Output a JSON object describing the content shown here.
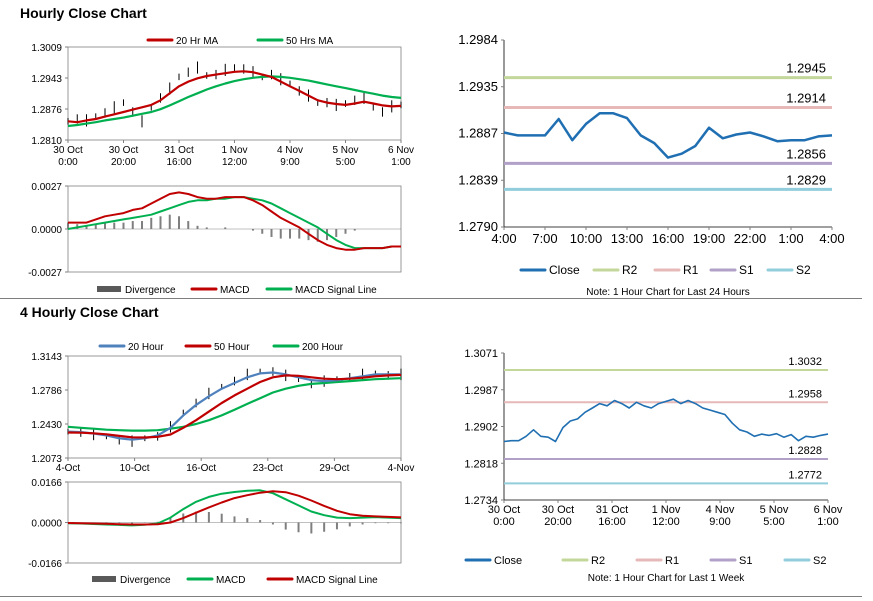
{
  "sections": {
    "hourly_title": "Hourly Close Chart",
    "four_hourly_title": "4 Hourly Close Chart"
  },
  "colors": {
    "price": "#000000",
    "ma20": "#c00000",
    "ma50": "#00b050",
    "blue": "#4f81bd",
    "close": "#1f6fb2",
    "r2": "#c4d79b",
    "r1": "#e6b9b8",
    "s1": "#b1a0c7",
    "s2": "#92cddc",
    "divergence": "#7f7f7f",
    "axis": "#808080"
  },
  "chart_data": [
    {
      "id": "hourly_price",
      "type": "line",
      "title": "Hourly Close Chart",
      "ylim": [
        1.281,
        1.3009
      ],
      "yticks": [
        "1.3009",
        "1.2943",
        "1.2876",
        "1.2810"
      ],
      "xticks": [
        [
          "30 Oct",
          "0:00"
        ],
        [
          "30 Oct",
          "20:00"
        ],
        [
          "31 Oct",
          "16:00"
        ],
        [
          "1 Nov",
          "12:00"
        ],
        [
          "4 Nov",
          "9:00"
        ],
        [
          "5 Nov",
          "5:00"
        ],
        [
          "6 Nov",
          "1:00"
        ]
      ],
      "legend": [
        "20 Hr MA",
        "50 Hrs MA"
      ],
      "series": [
        {
          "name": "Price",
          "values": [
            1.285,
            1.2855,
            1.2852,
            1.286,
            1.2868,
            1.288,
            1.289,
            1.287,
            1.285,
            1.288,
            1.29,
            1.292,
            1.2945,
            1.2955,
            1.2965,
            1.2948,
            1.295,
            1.296,
            1.2965,
            1.2962,
            1.2955,
            1.2945,
            1.295,
            1.294,
            1.293,
            1.2915,
            1.2905,
            1.289,
            1.289,
            1.2885,
            1.2888,
            1.2895,
            1.29,
            1.288,
            1.287,
            1.2882,
            1.2885
          ]
        },
        {
          "name": "20 Hr MA",
          "values": [
            1.285,
            1.2848,
            1.2852,
            1.2855,
            1.286,
            1.2865,
            1.287,
            1.2875,
            1.288,
            1.2885,
            1.2895,
            1.291,
            1.2925,
            1.2935,
            1.2942,
            1.2947,
            1.295,
            1.2953,
            1.2956,
            1.2957,
            1.2955,
            1.295,
            1.2945,
            1.2935,
            1.2925,
            1.2915,
            1.2905,
            1.2895,
            1.289,
            1.2887,
            1.2885,
            1.2888,
            1.2892,
            1.2888,
            1.2884,
            1.2882,
            1.2883
          ]
        },
        {
          "name": "50 Hrs MA",
          "values": [
            1.284,
            1.2842,
            1.2845,
            1.2848,
            1.2852,
            1.2855,
            1.2858,
            1.2862,
            1.2866,
            1.287,
            1.2876,
            1.2884,
            1.2893,
            1.2902,
            1.291,
            1.2918,
            1.2925,
            1.2931,
            1.2936,
            1.294,
            1.2943,
            1.2945,
            1.2946,
            1.2945,
            1.2943,
            1.294,
            1.2937,
            1.2933,
            1.2929,
            1.2925,
            1.2921,
            1.2917,
            1.2913,
            1.2909,
            1.2905,
            1.2902,
            1.29
          ]
        }
      ]
    },
    {
      "id": "hourly_macd",
      "type": "line",
      "ylim": [
        -0.0027,
        0.0027
      ],
      "yticks": [
        "0.0027",
        "0.0000",
        "-0.0027"
      ],
      "legend": [
        "Divergence",
        "MACD",
        "MACD Signal Line"
      ],
      "series": [
        {
          "name": "MACD",
          "values": [
            0.0004,
            0.0004,
            0.0004,
            0.0006,
            0.0008,
            0.0009,
            0.001,
            0.0012,
            0.0013,
            0.0016,
            0.0019,
            0.0022,
            0.0023,
            0.0022,
            0.002,
            0.0019,
            0.0019,
            0.002,
            0.002,
            0.002,
            0.0018,
            0.0015,
            0.0011,
            0.0007,
            0.0004,
            0.0001,
            -0.0003,
            -0.0007,
            -0.001,
            -0.0012,
            -0.0013,
            -0.0013,
            -0.0012,
            -0.0012,
            -0.0012,
            -0.0011,
            -0.0011
          ]
        },
        {
          "name": "MACD Signal Line",
          "values": [
            0.0,
            0.0001,
            0.0002,
            0.0003,
            0.0004,
            0.0005,
            0.0006,
            0.0007,
            0.0008,
            0.0009,
            0.0011,
            0.0013,
            0.0015,
            0.0017,
            0.0018,
            0.0018,
            0.0019,
            0.0019,
            0.002,
            0.002,
            0.0019,
            0.0018,
            0.0016,
            0.0013,
            0.001,
            0.0007,
            0.0004,
            0.0001,
            -0.0003,
            -0.0007,
            -0.001,
            -0.0012,
            -0.0012,
            -0.0012,
            -0.0012,
            -0.0011,
            -0.0011
          ]
        },
        {
          "name": "Divergence",
          "values": [
            0.0004,
            0.0003,
            0.0002,
            0.0003,
            0.0004,
            0.0004,
            0.0004,
            0.0005,
            0.0005,
            0.0007,
            0.0008,
            0.0009,
            0.0008,
            0.0005,
            0.0002,
            0.0001,
            0.0,
            0.0001,
            0.0,
            0.0,
            -0.0001,
            -0.0003,
            -0.0005,
            -0.0006,
            -0.0006,
            -0.0006,
            -0.0007,
            -0.0008,
            -0.0007,
            -0.0005,
            -0.0003,
            -0.0001,
            0.0,
            0.0,
            0.0,
            0.0,
            0.0
          ]
        }
      ]
    },
    {
      "id": "hourly_pivots",
      "type": "line",
      "note": "Note: 1 Hour Chart for Last 24 Hours",
      "ylim": [
        1.279,
        1.2984
      ],
      "yticks": [
        "1.2984",
        "1.2935",
        "1.2887",
        "1.2839",
        "1.2790"
      ],
      "xticks": [
        "4:00",
        "7:00",
        "10:00",
        "13:00",
        "16:00",
        "19:00",
        "22:00",
        "1:00",
        "4:00"
      ],
      "legend": [
        "Close",
        "R2",
        "R1",
        "S1",
        "S2"
      ],
      "levels": {
        "R2": 1.2945,
        "R1": 1.2914,
        "S1": 1.2856,
        "S2": 1.2829
      },
      "level_labels": {
        "R2": "1.2945",
        "R1": "1.2914",
        "S1": "1.2856",
        "S2": "1.2829"
      },
      "series": [
        {
          "name": "Close",
          "values": [
            1.2888,
            1.2885,
            1.2885,
            1.2885,
            1.2902,
            1.288,
            1.2897,
            1.2908,
            1.2908,
            1.2903,
            1.2885,
            1.2877,
            1.2862,
            1.2866,
            1.2874,
            1.2893,
            1.2882,
            1.2886,
            1.2888,
            1.2884,
            1.2879,
            1.288,
            1.288,
            1.2884,
            1.2885
          ]
        }
      ]
    },
    {
      "id": "four_hourly_price",
      "type": "line",
      "title": "4 Hourly Close Chart",
      "ylim": [
        1.2073,
        1.3143
      ],
      "yticks": [
        "1.3143",
        "1.2786",
        "1.2430",
        "1.2073"
      ],
      "xticks": [
        "4-Oct",
        "10-Oct",
        "16-Oct",
        "23-Oct",
        "29-Oct",
        "4-Nov"
      ],
      "legend": [
        "20 Hour",
        "50 Hour",
        "200 Hour"
      ],
      "series": [
        {
          "name": "Price",
          "values": [
            1.235,
            1.234,
            1.232,
            1.23,
            1.226,
            1.225,
            1.228,
            1.23,
            1.24,
            1.255,
            1.265,
            1.275,
            1.282,
            1.288,
            1.295,
            1.298,
            1.298,
            1.294,
            1.29,
            1.285,
            1.288,
            1.29,
            1.292,
            1.295,
            1.296,
            1.294,
            1.295
          ]
        },
        {
          "name": "20 Hour",
          "values": [
            1.235,
            1.2345,
            1.233,
            1.231,
            1.228,
            1.2265,
            1.228,
            1.231,
            1.239,
            1.252,
            1.263,
            1.272,
            1.28,
            1.286,
            1.292,
            1.296,
            1.297,
            1.295,
            1.292,
            1.289,
            1.288,
            1.289,
            1.291,
            1.293,
            1.295,
            1.295,
            1.295
          ]
        },
        {
          "name": "50 Hour",
          "values": [
            1.234,
            1.2338,
            1.2332,
            1.2322,
            1.2305,
            1.229,
            1.2288,
            1.2295,
            1.232,
            1.239,
            1.247,
            1.256,
            1.265,
            1.273,
            1.28,
            1.287,
            1.292,
            1.294,
            1.2935,
            1.292,
            1.2905,
            1.29,
            1.2905,
            1.2915,
            1.293,
            1.294,
            1.2945
          ]
        },
        {
          "name": "200 Hour",
          "values": [
            1.24,
            1.239,
            1.238,
            1.237,
            1.2365,
            1.236,
            1.236,
            1.2365,
            1.238,
            1.24,
            1.243,
            1.247,
            1.252,
            1.258,
            1.264,
            1.27,
            1.276,
            1.28,
            1.283,
            1.285,
            1.286,
            1.287,
            1.288,
            1.289,
            1.29,
            1.2905,
            1.291
          ]
        }
      ]
    },
    {
      "id": "four_hourly_macd",
      "type": "line",
      "ylim": [
        -0.0166,
        0.0166
      ],
      "yticks": [
        "0.0166",
        "0.0000",
        "-0.0166"
      ],
      "legend": [
        "Divergence",
        "MACD",
        "MACD Signal Line"
      ],
      "series": [
        {
          "name": "MACD",
          "values": [
            -0.0003,
            -0.0004,
            -0.0006,
            -0.0008,
            -0.001,
            -0.0012,
            -0.0009,
            -0.0004,
            0.002,
            0.0055,
            0.0085,
            0.0105,
            0.0118,
            0.0125,
            0.013,
            0.0132,
            0.012,
            0.0095,
            0.007,
            0.0045,
            0.003,
            0.002,
            0.0018,
            0.002,
            0.0022,
            0.002,
            0.0018
          ]
        },
        {
          "name": "MACD Signal Line",
          "values": [
            -0.0002,
            -0.0003,
            -0.0004,
            -0.0005,
            -0.0007,
            -0.0008,
            -0.0008,
            -0.0007,
            0.0,
            0.0018,
            0.004,
            0.0062,
            0.0082,
            0.01,
            0.0112,
            0.0122,
            0.0128,
            0.0124,
            0.011,
            0.009,
            0.0068,
            0.0048,
            0.0034,
            0.0028,
            0.0025,
            0.0023,
            0.0021
          ]
        },
        {
          "name": "Divergence",
          "values": [
            -0.0001,
            -0.0001,
            -0.0002,
            -0.0003,
            -0.0003,
            -0.0004,
            -0.0001,
            0.0003,
            0.002,
            0.0037,
            0.0045,
            0.0043,
            0.0036,
            0.0025,
            0.0018,
            0.001,
            -0.0008,
            -0.0029,
            -0.004,
            -0.0045,
            -0.0038,
            -0.0028,
            -0.0016,
            -0.0008,
            -0.0003,
            -0.0003,
            -0.0003
          ]
        }
      ]
    },
    {
      "id": "four_hourly_pivots",
      "type": "line",
      "note": "Note: 1 Hour Chart for Last 1 Week",
      "ylim": [
        1.2734,
        1.3071
      ],
      "yticks": [
        "1.3071",
        "1.2987",
        "1.2902",
        "1.2818",
        "1.2734"
      ],
      "xticks": [
        [
          "30 Oct",
          "0:00"
        ],
        [
          "30 Oct",
          "20:00"
        ],
        [
          "31 Oct",
          "16:00"
        ],
        [
          "1 Nov",
          "12:00"
        ],
        [
          "4 Nov",
          "9:00"
        ],
        [
          "5 Nov",
          "5:00"
        ],
        [
          "6 Nov",
          "1:00"
        ]
      ],
      "legend": [
        "Close",
        "R2",
        "R1",
        "S1",
        "S2"
      ],
      "levels": {
        "R2": 1.3032,
        "R1": 1.2958,
        "S1": 1.2828,
        "S2": 1.2772
      },
      "level_labels": {
        "R2": "1.3032",
        "R1": "1.2958",
        "S1": "1.2828",
        "S2": "1.2772"
      },
      "series": [
        {
          "name": "Close",
          "values": [
            1.2868,
            1.287,
            1.287,
            1.288,
            1.2895,
            1.288,
            1.2878,
            1.2868,
            1.29,
            1.2915,
            1.292,
            1.2935,
            1.2945,
            1.2955,
            1.295,
            1.2962,
            1.2955,
            1.2945,
            1.2958,
            1.295,
            1.2945,
            1.2955,
            1.296,
            1.2965,
            1.2955,
            1.2962,
            1.2955,
            1.2945,
            1.294,
            1.2935,
            1.293,
            1.291,
            1.2895,
            1.289,
            1.288,
            1.2885,
            1.2882,
            1.2886,
            1.2878,
            1.2884,
            1.287,
            1.288,
            1.2878,
            1.2882,
            1.2885
          ]
        }
      ]
    }
  ]
}
